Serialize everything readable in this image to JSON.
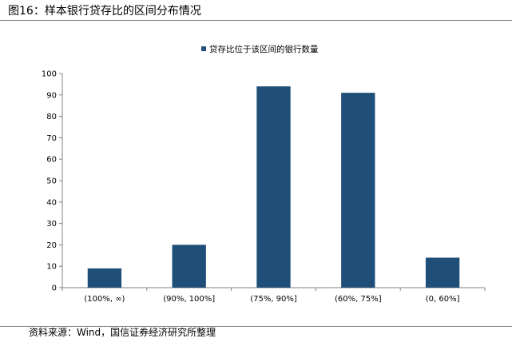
{
  "figure": {
    "title": "图16：样本银行贷存比的区间分布情况",
    "source": "资料来源：Wind，国信证券经济研究所整理"
  },
  "colors": {
    "bar": "#1f4e79",
    "axis": "#808080",
    "rule": "#7f7f7f"
  },
  "chart_data": {
    "type": "bar",
    "title": "",
    "xlabel": "",
    "ylabel": "",
    "categories": [
      "(100%, ∞)",
      "(90%, 100%]",
      "(75%, 90%]",
      "(60%, 75%]",
      "(0, 60%]"
    ],
    "series": [
      {
        "name": "贷存比位于该区间的银行数量",
        "values": [
          9,
          20,
          94,
          91,
          14
        ]
      }
    ],
    "ylim": [
      0,
      100
    ],
    "yticks": [
      0,
      10,
      20,
      30,
      40,
      50,
      60,
      70,
      80,
      90,
      100
    ],
    "grid": false,
    "legend": "top-center"
  }
}
